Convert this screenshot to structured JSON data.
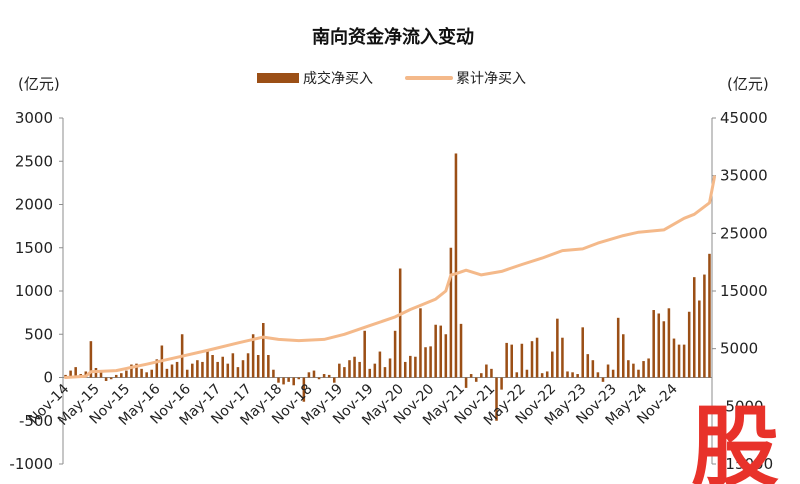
{
  "chart_data": {
    "type": "bar",
    "title": "南向资金净流入变动",
    "y_left_unit": "(亿元)",
    "y_right_unit": "(亿元)",
    "y_left_ticks": [
      "3000",
      "2500",
      "2000",
      "1500",
      "1000",
      "500",
      "0",
      "-500",
      "-1000"
    ],
    "y_right_ticks": [
      "45000",
      "35000",
      "25000",
      "15000",
      "5000",
      "-5000",
      "-15000"
    ],
    "ylim_left": [
      -1000,
      3000
    ],
    "ylim_right": [
      -15000,
      45000
    ],
    "x_tick_labels": [
      "Nov-14",
      "May-15",
      "Nov-15",
      "May-16",
      "Nov-16",
      "May-17",
      "Nov-17",
      "May-18",
      "Nov-18",
      "May-19",
      "Nov-19",
      "May-20",
      "Nov-20",
      "May-21",
      "Nov-21",
      "May-22",
      "Nov-22",
      "May-23",
      "Nov-23",
      "May-24",
      "Nov-24"
    ],
    "series": [
      {
        "name": "成交净买入",
        "type": "bar",
        "axis": "left",
        "color": "#9b4f16",
        "values": [
          30,
          80,
          120,
          40,
          70,
          420,
          110,
          60,
          -40,
          -20,
          30,
          50,
          80,
          150,
          160,
          100,
          60,
          90,
          210,
          370,
          100,
          150,
          180,
          500,
          90,
          160,
          200,
          180,
          320,
          260,
          180,
          240,
          160,
          280,
          120,
          200,
          280,
          500,
          260,
          630,
          260,
          90,
          -60,
          -80,
          -50,
          -90,
          -20,
          -280,
          60,
          80,
          -20,
          40,
          30,
          -60,
          160,
          120,
          200,
          240,
          180,
          540,
          100,
          160,
          300,
          120,
          220,
          540,
          1260,
          180,
          250,
          240,
          800,
          350,
          360,
          610,
          600,
          500,
          1500,
          2590,
          620,
          -120,
          40,
          -50,
          50,
          150,
          100,
          -500,
          -140,
          400,
          380,
          60,
          390,
          90,
          420,
          460,
          50,
          70,
          300,
          680,
          460,
          70,
          60,
          40,
          580,
          270,
          200,
          60,
          -50,
          150,
          90,
          690,
          500,
          200,
          160,
          90,
          190,
          220,
          780,
          740,
          650,
          800,
          450,
          380,
          380,
          760,
          1160,
          890,
          1190,
          1430
        ]
      },
      {
        "name": "累计净买入",
        "type": "line",
        "axis": "right",
        "color": "#f4b98a",
        "x": [
          0,
          4,
          5,
          10,
          16,
          22,
          28,
          34,
          39,
          42,
          46,
          51,
          55,
          60,
          65,
          68,
          70,
          73,
          75,
          76,
          77,
          79,
          82,
          86,
          90,
          94,
          98,
          102,
          105,
          110,
          113,
          118,
          122,
          124,
          127,
          128
        ],
        "values": [
          0,
          200,
          1000,
          1200,
          2300,
          3500,
          4700,
          6000,
          7000,
          6600,
          6400,
          6600,
          7500,
          9000,
          10500,
          11800,
          12500,
          13600,
          15000,
          17800,
          18000,
          18600,
          17800,
          18400,
          19600,
          20700,
          22000,
          22300,
          23300,
          24600,
          25200,
          25600,
          27600,
          28300,
          30300,
          34800
        ]
      }
    ]
  },
  "logo_glyph": "股"
}
